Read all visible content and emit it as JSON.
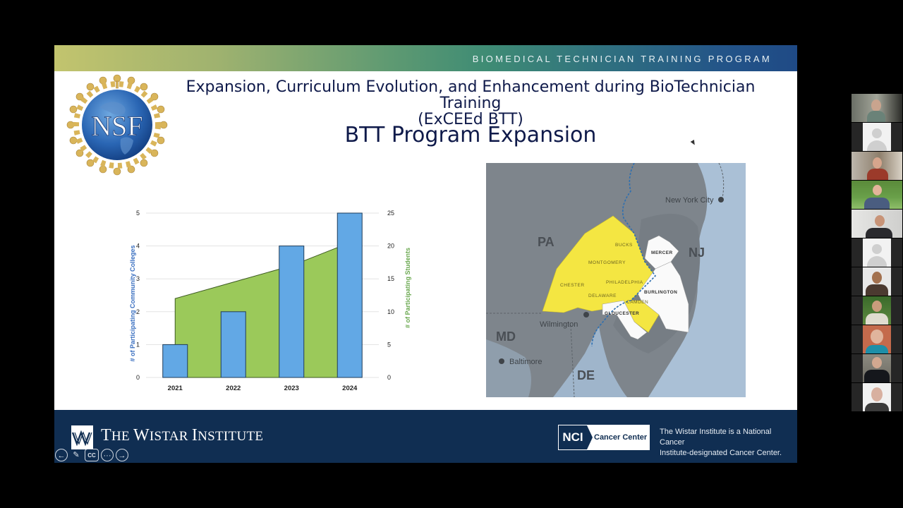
{
  "slide": {
    "banner_text": "BIOMEDICAL TECHNICIAN TRAINING PROGRAM",
    "logo_text": "NSF",
    "title_line1": "Expansion, Curriculum Evolution, and Enhancement during BioTechnician Training",
    "title_line2": "(ExCEEd BTT)",
    "subtitle": "BTT Program Expansion",
    "colors": {
      "title": "#0f1a4a",
      "bar": "#62a8e5",
      "area": "#9bc95a",
      "left_axis_label": "#3a6fc0",
      "right_axis_label": "#6aa84f",
      "footer_bg": "#102e52",
      "map_highlight": "#f4e642"
    }
  },
  "chart_data": {
    "type": "bar",
    "title": "",
    "categories": [
      "2021",
      "2022",
      "2023",
      "2024"
    ],
    "series": [
      {
        "name": "# of Participating Community Colleges",
        "type": "bar",
        "axis": "left",
        "values": [
          1,
          2,
          4,
          5
        ]
      },
      {
        "name": "# of Participating Students",
        "type": "area",
        "axis": "right",
        "values": [
          12,
          14.5,
          17,
          20.5
        ]
      }
    ],
    "xlabel": "",
    "ylabel": "# of Participating Community Colleges",
    "y2label": "# of Participating Students",
    "ylim": [
      0,
      5
    ],
    "y2lim": [
      0,
      25
    ],
    "yticks": [
      "0",
      "1",
      "2",
      "3",
      "4",
      "5"
    ],
    "y2ticks": [
      "0",
      "5",
      "10",
      "15",
      "20",
      "25"
    ],
    "grid": true,
    "legend": "none"
  },
  "map": {
    "states": [
      "PA",
      "NJ",
      "MD",
      "DE"
    ],
    "cities": [
      "New York City",
      "Wilmington",
      "Baltimore"
    ],
    "highlighted_counties": [
      "BUCKS",
      "MONTGOMERY",
      "CHESTER",
      "DELAWARE",
      "PHILADELPHIA",
      "CAMDEN"
    ],
    "other_counties": [
      "MERCER",
      "BURLINGTON",
      "GLOUCESTER"
    ]
  },
  "footer": {
    "institute_name_first": "T",
    "institute_name_rest1": "HE ",
    "institute_name_w": "W",
    "institute_name_rest2": "ISTAR ",
    "institute_name_i": "I",
    "institute_name_rest3": "NSTITUTE",
    "nci_label": "NCI",
    "cancer_center_label": "Cancer Center",
    "nci_note_line1": "The Wistar Institute is a National Cancer",
    "nci_note_line2": "Institute-designated Cancer Center."
  },
  "controls": {
    "prev_icon": "←",
    "pen_icon": "✎",
    "cc_label": "CC",
    "more_icon": "···",
    "next_icon": "→"
  },
  "participants": {
    "count": 11
  }
}
